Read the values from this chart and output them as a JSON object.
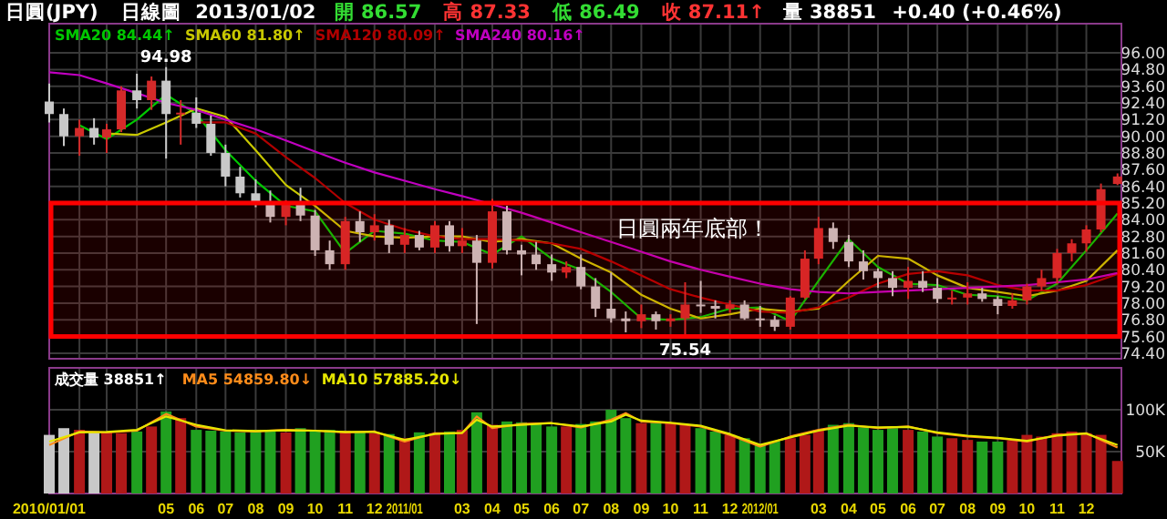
{
  "chart_data": [
    {
      "type": "candlestick",
      "title": "日圓(JPY)",
      "subtitle": "日線圖",
      "annotations": [
        "2013/01/02",
        "開 86.57",
        "高 87.33",
        "低 86.49",
        "收 87.11↑",
        "量 38851",
        "+0.40 (+0.46%)",
        {
          "text": "94.98",
          "x": "2010-05-01",
          "y": 94.98
        },
        {
          "text": "75.54",
          "x": "2011-10-16",
          "y": 75.54
        }
      ],
      "x": [
        "2010-01-01",
        "2010-01-16",
        "2010-02-01",
        "2010-02-16",
        "2010-03-01",
        "2010-03-16",
        "2010-04-01",
        "2010-04-16",
        "2010-05-01",
        "2010-05-16",
        "2010-06-01",
        "2010-06-16",
        "2010-07-01",
        "2010-07-16",
        "2010-08-01",
        "2010-08-16",
        "2010-09-01",
        "2010-09-16",
        "2010-10-01",
        "2010-10-16",
        "2010-11-01",
        "2010-11-16",
        "2010-12-01",
        "2010-12-16",
        "2011-01-01",
        "2011-01-16",
        "2011-02-01",
        "2011-02-16",
        "2011-03-01",
        "2011-03-16",
        "2011-04-01",
        "2011-04-16",
        "2011-05-01",
        "2011-05-16",
        "2011-06-01",
        "2011-06-16",
        "2011-07-01",
        "2011-07-16",
        "2011-08-01",
        "2011-08-16",
        "2011-09-01",
        "2011-09-16",
        "2011-10-01",
        "2011-10-16",
        "2011-11-01",
        "2011-11-16",
        "2011-12-01",
        "2011-12-16",
        "2012-01-01",
        "2012-01-16",
        "2012-02-01",
        "2012-02-16",
        "2012-03-01",
        "2012-03-16",
        "2012-04-01",
        "2012-04-16",
        "2012-05-01",
        "2012-05-16",
        "2012-06-01",
        "2012-06-16",
        "2012-07-01",
        "2012-07-16",
        "2012-08-01",
        "2012-08-16",
        "2012-09-01",
        "2012-09-16",
        "2012-10-01",
        "2012-10-16",
        "2012-11-01",
        "2012-11-16",
        "2012-12-01",
        "2012-12-16",
        "2013-01-02"
      ],
      "ohlc": [
        [
          92.5,
          93.8,
          91.0,
          91.6
        ],
        [
          91.6,
          92.0,
          89.3,
          90.0
        ],
        [
          90.0,
          91.2,
          88.6,
          90.6
        ],
        [
          90.6,
          91.3,
          89.4,
          89.9
        ],
        [
          89.9,
          90.9,
          88.8,
          90.5
        ],
        [
          90.5,
          93.6,
          90.3,
          93.3
        ],
        [
          93.3,
          94.5,
          92.0,
          92.6
        ],
        [
          92.6,
          94.3,
          91.9,
          94.0
        ],
        [
          94.0,
          94.98,
          88.4,
          91.6
        ],
        [
          91.6,
          92.6,
          89.4,
          91.7
        ],
        [
          91.7,
          92.8,
          90.6,
          90.9
        ],
        [
          90.9,
          91.5,
          88.6,
          88.8
        ],
        [
          88.8,
          89.4,
          86.4,
          87.1
        ],
        [
          87.1,
          87.8,
          85.6,
          85.9
        ],
        [
          85.9,
          86.9,
          84.9,
          85.2
        ],
        [
          85.2,
          86.1,
          83.8,
          84.2
        ],
        [
          84.2,
          85.4,
          83.6,
          85.2
        ],
        [
          85.2,
          86.3,
          83.9,
          84.3
        ],
        [
          84.3,
          84.7,
          81.4,
          81.8
        ],
        [
          81.8,
          82.5,
          80.4,
          80.8
        ],
        [
          80.8,
          84.2,
          80.4,
          83.9
        ],
        [
          83.9,
          84.6,
          82.4,
          83.1
        ],
        [
          83.1,
          84.4,
          82.5,
          83.6
        ],
        [
          83.6,
          84.0,
          81.6,
          82.2
        ],
        [
          82.2,
          83.4,
          81.6,
          82.9
        ],
        [
          82.9,
          83.2,
          81.8,
          82.0
        ],
        [
          82.0,
          83.9,
          81.6,
          83.6
        ],
        [
          83.6,
          83.9,
          81.7,
          82.1
        ],
        [
          82.1,
          83.4,
          81.6,
          82.5
        ],
        [
          82.5,
          82.9,
          76.5,
          80.9
        ],
        [
          80.9,
          85.5,
          80.5,
          84.6
        ],
        [
          84.6,
          85.0,
          81.5,
          81.8
        ],
        [
          81.8,
          82.2,
          80.0,
          81.5
        ],
        [
          81.5,
          82.4,
          80.4,
          80.8
        ],
        [
          80.8,
          81.5,
          79.6,
          80.2
        ],
        [
          80.2,
          81.0,
          79.8,
          80.6
        ],
        [
          80.6,
          81.5,
          79.0,
          79.2
        ],
        [
          79.2,
          79.8,
          77.0,
          77.6
        ],
        [
          77.6,
          80.2,
          76.6,
          76.9
        ],
        [
          76.9,
          77.4,
          75.9,
          76.7
        ],
        [
          76.7,
          77.9,
          76.2,
          77.2
        ],
        [
          77.2,
          77.4,
          76.1,
          76.7
        ],
        [
          76.7,
          77.2,
          76.3,
          76.9
        ],
        [
          76.9,
          79.5,
          75.54,
          77.9
        ],
        [
          77.9,
          79.6,
          77.3,
          77.8
        ],
        [
          77.8,
          78.2,
          76.9,
          77.6
        ],
        [
          77.6,
          78.2,
          77.3,
          77.9
        ],
        [
          77.9,
          78.2,
          76.8,
          76.9
        ],
        [
          76.9,
          77.8,
          76.3,
          76.8
        ],
        [
          76.8,
          77.1,
          76.0,
          76.3
        ],
        [
          76.3,
          78.5,
          76.1,
          78.4
        ],
        [
          78.4,
          81.8,
          78.3,
          81.2
        ],
        [
          81.2,
          84.2,
          80.8,
          83.4
        ],
        [
          83.4,
          83.8,
          81.9,
          82.4
        ],
        [
          82.4,
          82.9,
          80.6,
          81.0
        ],
        [
          81.0,
          81.8,
          79.7,
          80.3
        ],
        [
          80.3,
          80.5,
          79.1,
          79.8
        ],
        [
          79.8,
          80.3,
          78.5,
          79.1
        ],
        [
          79.1,
          80.6,
          78.3,
          79.6
        ],
        [
          79.6,
          80.3,
          78.8,
          79.1
        ],
        [
          79.1,
          79.8,
          78.0,
          78.3
        ],
        [
          78.3,
          78.9,
          77.9,
          78.4
        ],
        [
          78.4,
          79.5,
          77.9,
          78.7
        ],
        [
          78.7,
          79.1,
          78.1,
          78.3
        ],
        [
          78.3,
          78.5,
          77.2,
          77.8
        ],
        [
          77.8,
          78.7,
          77.6,
          78.2
        ],
        [
          78.2,
          79.4,
          77.9,
          79.2
        ],
        [
          79.2,
          80.4,
          78.9,
          79.8
        ],
        [
          79.8,
          81.9,
          79.4,
          81.6
        ],
        [
          81.6,
          82.6,
          81.0,
          82.3
        ],
        [
          82.3,
          83.6,
          81.7,
          83.3
        ],
        [
          83.3,
          86.6,
          83.1,
          86.2
        ],
        [
          86.57,
          87.33,
          86.49,
          87.11
        ]
      ],
      "colors": [
        "#c8c8c8",
        "#c8c8c8",
        "#d42a2a",
        "#c8c8c8",
        "#d42a2a",
        "#d42a2a",
        "#c8c8c8",
        "#d42a2a",
        "#c8c8c8",
        "#d42a2a",
        "#c8c8c8",
        "#c8c8c8",
        "#c8c8c8",
        "#c8c8c8",
        "#c8c8c8",
        "#c8c8c8",
        "#d42a2a",
        "#c8c8c8",
        "#c8c8c8",
        "#c8c8c8",
        "#d42a2a",
        "#c8c8c8",
        "#d42a2a",
        "#c8c8c8",
        "#d42a2a",
        "#c8c8c8",
        "#d42a2a",
        "#c8c8c8",
        "#d42a2a",
        "#c8c8c8",
        "#d42a2a",
        "#c8c8c8",
        "#c8c8c8",
        "#c8c8c8",
        "#c8c8c8",
        "#d42a2a",
        "#c8c8c8",
        "#c8c8c8",
        "#c8c8c8",
        "#c8c8c8",
        "#d42a2a",
        "#c8c8c8",
        "#d42a2a",
        "#d42a2a",
        "#c8c8c8",
        "#c8c8c8",
        "#d42a2a",
        "#c8c8c8",
        "#c8c8c8",
        "#c8c8c8",
        "#d42a2a",
        "#d42a2a",
        "#d42a2a",
        "#c8c8c8",
        "#c8c8c8",
        "#c8c8c8",
        "#c8c8c8",
        "#c8c8c8",
        "#d42a2a",
        "#c8c8c8",
        "#c8c8c8",
        "#d42a2a",
        "#d42a2a",
        "#c8c8c8",
        "#c8c8c8",
        "#d42a2a",
        "#d42a2a",
        "#d42a2a",
        "#d42a2a",
        "#d42a2a",
        "#d42a2a",
        "#d42a2a",
        "#d42a2a"
      ],
      "series": [
        {
          "type": "line",
          "name": "SMA20 84.44↑",
          "color": "#00c800",
          "x": [
            "2010-02-01",
            "2010-03-01",
            "2010-04-01",
            "2010-05-01",
            "2010-06-01",
            "2010-07-01",
            "2010-08-01",
            "2010-09-01",
            "2010-10-01",
            "2010-11-01",
            "2010-12-01",
            "2011-01-01",
            "2011-02-01",
            "2011-03-01",
            "2011-04-01",
            "2011-05-01",
            "2011-06-01",
            "2011-07-01",
            "2011-08-01",
            "2011-09-01",
            "2011-10-01",
            "2011-11-01",
            "2011-12-01",
            "2012-01-01",
            "2012-02-01",
            "2012-03-01",
            "2012-04-01",
            "2012-05-01",
            "2012-06-01",
            "2012-07-01",
            "2012-08-01",
            "2012-09-01",
            "2012-10-01",
            "2012-11-01",
            "2012-12-01",
            "2013-01-02"
          ],
          "values": [
            90.8,
            89.8,
            91.2,
            93.0,
            91.6,
            89.0,
            86.8,
            85.0,
            84.6,
            81.6,
            83.2,
            83.0,
            82.5,
            82.4,
            81.5,
            82.8,
            81.2,
            80.4,
            78.8,
            76.9,
            76.8,
            77.0,
            77.6,
            77.7,
            76.7,
            79.6,
            82.6,
            80.6,
            79.4,
            79.3,
            78.6,
            78.5,
            78.2,
            79.4,
            81.8,
            84.44
          ]
        },
        {
          "type": "line",
          "name": "SMA60 81.80↑",
          "color": "#c8c800",
          "x": [
            "2010-03-01",
            "2010-04-01",
            "2010-05-01",
            "2010-06-01",
            "2010-07-01",
            "2010-08-01",
            "2010-09-01",
            "2010-10-01",
            "2010-11-01",
            "2010-12-01",
            "2011-01-01",
            "2011-02-01",
            "2011-03-01",
            "2011-04-01",
            "2011-05-01",
            "2011-06-01",
            "2011-07-01",
            "2011-08-01",
            "2011-09-01",
            "2011-10-01",
            "2011-11-01",
            "2011-12-01",
            "2012-01-01",
            "2012-02-01",
            "2012-03-01",
            "2012-04-01",
            "2012-05-01",
            "2012-06-01",
            "2012-07-01",
            "2012-08-01",
            "2012-09-01",
            "2012-10-01",
            "2012-11-01",
            "2012-12-01",
            "2013-01-02"
          ],
          "values": [
            90.2,
            90.1,
            91.0,
            92.0,
            91.4,
            89.0,
            86.5,
            85.0,
            83.2,
            82.8,
            82.7,
            82.8,
            82.8,
            82.4,
            82.6,
            82.3,
            81.2,
            80.2,
            78.6,
            77.6,
            76.9,
            77.2,
            77.6,
            77.4,
            77.6,
            79.6,
            81.4,
            81.2,
            80.0,
            79.1,
            78.8,
            78.5,
            78.9,
            79.6,
            81.8
          ]
        },
        {
          "type": "line",
          "name": "SMA120 80.09↑",
          "color": "#b00000",
          "x": [
            "2010-06-01",
            "2010-07-01",
            "2010-08-01",
            "2010-09-01",
            "2010-10-01",
            "2010-11-01",
            "2010-12-01",
            "2011-01-01",
            "2011-02-01",
            "2011-03-01",
            "2011-04-01",
            "2011-05-01",
            "2011-06-01",
            "2011-07-01",
            "2011-08-01",
            "2011-09-01",
            "2011-10-01",
            "2011-11-01",
            "2011-12-01",
            "2012-01-01",
            "2012-02-01",
            "2012-03-01",
            "2012-04-01",
            "2012-05-01",
            "2012-06-01",
            "2012-07-01",
            "2012-08-01",
            "2012-09-01",
            "2012-10-01",
            "2012-11-01",
            "2012-12-01",
            "2013-01-02"
          ],
          "values": [
            91.0,
            91.0,
            90.2,
            88.5,
            87.0,
            85.2,
            84.0,
            83.3,
            82.8,
            82.6,
            82.6,
            82.5,
            82.3,
            81.9,
            81.0,
            80.0,
            79.0,
            78.4,
            77.9,
            77.4,
            77.3,
            77.7,
            78.4,
            79.4,
            80.1,
            80.3,
            80.0,
            79.3,
            78.9,
            78.9,
            79.3,
            80.09
          ]
        },
        {
          "type": "line",
          "name": "SMA240 80.16↑",
          "color": "#c000c0",
          "x": [
            "2010-01-01",
            "2010-02-01",
            "2010-03-01",
            "2010-04-01",
            "2010-05-01",
            "2010-06-01",
            "2010-07-01",
            "2010-08-01",
            "2010-09-01",
            "2010-10-01",
            "2010-11-01",
            "2010-12-01",
            "2011-01-01",
            "2011-02-01",
            "2011-03-01",
            "2011-04-01",
            "2011-05-01",
            "2011-06-01",
            "2011-07-01",
            "2011-08-01",
            "2011-09-01",
            "2011-10-01",
            "2011-11-01",
            "2011-12-01",
            "2012-01-01",
            "2012-02-01",
            "2012-03-01",
            "2012-04-01",
            "2012-05-01",
            "2012-06-01",
            "2012-07-01",
            "2012-08-01",
            "2012-09-01",
            "2012-10-01",
            "2012-11-01",
            "2012-12-01",
            "2013-01-02"
          ],
          "values": [
            94.6,
            94.4,
            93.8,
            93.1,
            92.4,
            91.9,
            91.2,
            90.5,
            89.7,
            88.9,
            88.1,
            87.4,
            86.8,
            86.2,
            85.7,
            85.1,
            84.5,
            83.8,
            83.1,
            82.4,
            81.7,
            81.0,
            80.4,
            79.9,
            79.4,
            79.0,
            78.8,
            78.7,
            78.8,
            78.9,
            79.0,
            79.1,
            79.2,
            79.3,
            79.5,
            79.7,
            80.16
          ]
        }
      ],
      "xlim": [
        "2010-01-01",
        "2013-01-06"
      ],
      "xticks": [
        {
          "value": "2010-01-01",
          "label": null
        },
        {
          "value": "2010-02",
          "label": null
        },
        {
          "value": "2010-03",
          "label": null
        },
        {
          "value": "2010-04",
          "label": null
        },
        {
          "value": "2010-05",
          "label": null
        },
        {
          "value": "2010-06",
          "label": null
        },
        {
          "value": "2010-07",
          "label": null
        },
        {
          "value": "2010-08",
          "label": null
        },
        {
          "value": "2010-09",
          "label": null
        },
        {
          "value": "2010-10",
          "label": null
        },
        {
          "value": "2010-11",
          "label": null
        },
        {
          "value": "2010-12",
          "label": null
        },
        {
          "value": "2011-01",
          "label": null
        },
        {
          "value": "2011-02",
          "label": null
        },
        {
          "value": "2011-03",
          "label": null
        },
        {
          "value": "2011-04",
          "label": null
        },
        {
          "value": "2011-05",
          "label": null
        },
        {
          "value": "2011-06",
          "label": null
        },
        {
          "value": "2011-07",
          "label": null
        },
        {
          "value": "2011-08",
          "label": null
        },
        {
          "value": "2011-09",
          "label": null
        },
        {
          "value": "2011-10",
          "label": null
        },
        {
          "value": "2011-11",
          "label": null
        },
        {
          "value": "2011-12",
          "label": null
        },
        {
          "value": "2012-01",
          "label": null
        },
        {
          "value": "2012-02",
          "label": null
        },
        {
          "value": "2012-03",
          "label": null
        },
        {
          "value": "2012-04",
          "label": null
        },
        {
          "value": "2012-05",
          "label": null
        },
        {
          "value": "2012-06",
          "label": null
        },
        {
          "value": "2012-07",
          "label": null
        },
        {
          "value": "2012-08",
          "label": null
        },
        {
          "value": "2012-09",
          "label": null
        },
        {
          "value": "2012-10",
          "label": null
        },
        {
          "value": "2012-11",
          "label": null
        },
        {
          "value": "2012-12",
          "label": null
        }
      ],
      "ylim": [
        74.0,
        98.1
      ],
      "yticks": [
        {
          "value": 74.4,
          "label": "74.40"
        },
        {
          "value": 75.6,
          "label": "75.60"
        },
        {
          "value": 76.8,
          "label": "76.80"
        },
        {
          "value": 78,
          "label": "78.00"
        },
        {
          "value": 79.2,
          "label": "79.20"
        },
        {
          "value": 80.4,
          "label": "80.40"
        },
        {
          "value": 81.6,
          "label": "81.60"
        },
        {
          "value": 82.8,
          "label": "82.80"
        },
        {
          "value": 84,
          "label": "84.00"
        },
        {
          "value": 85.2,
          "label": "85.20"
        },
        {
          "value": 86.4,
          "label": "86.40"
        },
        {
          "value": 87.6,
          "label": "87.60"
        },
        {
          "value": 88.8,
          "label": "88.80"
        },
        {
          "value": 90,
          "label": "90.00"
        },
        {
          "value": 91.2,
          "label": "91.20"
        },
        {
          "value": 92.4,
          "label": "92.40"
        },
        {
          "value": 93.6,
          "label": "93.60"
        },
        {
          "value": 94.8,
          "label": "94.80"
        },
        {
          "value": 96,
          "label": "96.00"
        }
      ],
      "bands": [
        {
          "axis": "y",
          "from": 75.6,
          "to": 85.2,
          "label": "日圓兩年底部！",
          "color": "#ff0000"
        }
      ],
      "tick_labels": "y",
      "grid": true,
      "legend": "top left"
    },
    {
      "type": "bar",
      "annotations": [
        "成交量 38851↑"
      ],
      "x": [
        "2010-01-01",
        "2010-01-16",
        "2010-02-01",
        "2010-02-16",
        "2010-03-01",
        "2010-03-16",
        "2010-04-01",
        "2010-04-16",
        "2010-05-01",
        "2010-05-16",
        "2010-06-01",
        "2010-06-16",
        "2010-07-01",
        "2010-07-16",
        "2010-08-01",
        "2010-08-16",
        "2010-09-01",
        "2010-09-16",
        "2010-10-01",
        "2010-10-16",
        "2010-11-01",
        "2010-11-16",
        "2010-12-01",
        "2010-12-16",
        "2011-01-01",
        "2011-01-16",
        "2011-02-01",
        "2011-02-16",
        "2011-03-01",
        "2011-03-16",
        "2011-04-01",
        "2011-04-16",
        "2011-05-01",
        "2011-05-16",
        "2011-06-01",
        "2011-06-16",
        "2011-07-01",
        "2011-07-16",
        "2011-08-01",
        "2011-08-16",
        "2011-09-01",
        "2011-09-16",
        "2011-10-01",
        "2011-10-16",
        "2011-11-01",
        "2011-11-16",
        "2011-12-01",
        "2011-12-16",
        "2012-01-01",
        "2012-01-16",
        "2012-02-01",
        "2012-02-16",
        "2012-03-01",
        "2012-03-16",
        "2012-04-01",
        "2012-04-16",
        "2012-05-01",
        "2012-05-16",
        "2012-06-01",
        "2012-06-16",
        "2012-07-01",
        "2012-07-16",
        "2012-08-01",
        "2012-08-16",
        "2012-09-01",
        "2012-09-16",
        "2012-10-01",
        "2012-10-16",
        "2012-11-01",
        "2012-11-16",
        "2012-12-01",
        "2012-12-16",
        "2013-01-02"
      ],
      "values": [
        70000,
        78000,
        76000,
        74000,
        73000,
        72000,
        74000,
        80000,
        98000,
        90000,
        76000,
        75000,
        74000,
        73000,
        76000,
        75000,
        73000,
        78000,
        74000,
        76000,
        75000,
        74000,
        72000,
        71000,
        66000,
        73000,
        72000,
        74000,
        76000,
        97000,
        82000,
        86000,
        85000,
        83000,
        80000,
        80000,
        83000,
        86000,
        100000,
        90000,
        84000,
        86000,
        85000,
        82000,
        78000,
        74000,
        70000,
        66000,
        58000,
        62000,
        66000,
        70000,
        76000,
        82000,
        84000,
        79000,
        76000,
        78000,
        76000,
        74000,
        68000,
        66000,
        64000,
        62000,
        62000,
        63000,
        70000,
        68000,
        72000,
        74000,
        72000,
        70000,
        38851
      ],
      "colors": [
        "#c8c8c8",
        "#c8c8c8",
        "#b01818",
        "#c8c8c8",
        "#b01818",
        "#b01818",
        "#20a020",
        "#b01818",
        "#20a020",
        "#b01818",
        "#20a020",
        "#20a020",
        "#20a020",
        "#20a020",
        "#20a020",
        "#20a020",
        "#b01818",
        "#20a020",
        "#20a020",
        "#20a020",
        "#b01818",
        "#20a020",
        "#b01818",
        "#20a020",
        "#b01818",
        "#20a020",
        "#b01818",
        "#20a020",
        "#b01818",
        "#20a020",
        "#b01818",
        "#20a020",
        "#20a020",
        "#20a020",
        "#20a020",
        "#b01818",
        "#20a020",
        "#20a020",
        "#20a020",
        "#20a020",
        "#b01818",
        "#20a020",
        "#b01818",
        "#b01818",
        "#20a020",
        "#20a020",
        "#b01818",
        "#20a020",
        "#20a020",
        "#20a020",
        "#b01818",
        "#b01818",
        "#b01818",
        "#20a020",
        "#20a020",
        "#20a020",
        "#20a020",
        "#20a020",
        "#b01818",
        "#20a020",
        "#20a020",
        "#b01818",
        "#b01818",
        "#20a020",
        "#20a020",
        "#b01818",
        "#b01818",
        "#b01818",
        "#b01818",
        "#b01818",
        "#b01818",
        "#b01818",
        "#b01818"
      ],
      "series": [
        {
          "type": "line",
          "name": "MA5 54859.80↓",
          "color": "#ff8c1a",
          "x": [
            "2010-01-01",
            "2010-02-01",
            "2010-03-01",
            "2010-04-01",
            "2010-05-01",
            "2010-06-01",
            "2010-07-01",
            "2010-08-01",
            "2010-09-01",
            "2010-10-01",
            "2010-11-01",
            "2010-12-01",
            "2011-01-01",
            "2011-02-01",
            "2011-03-01",
            "2011-03-16",
            "2011-04-01",
            "2011-05-01",
            "2011-06-01",
            "2011-07-01",
            "2011-08-01",
            "2011-08-16",
            "2011-09-01",
            "2011-10-01",
            "2011-11-01",
            "2011-12-01",
            "2012-01-01",
            "2012-02-01",
            "2012-03-01",
            "2012-04-01",
            "2012-05-01",
            "2012-06-01",
            "2012-07-01",
            "2012-08-01",
            "2012-09-01",
            "2012-10-01",
            "2012-11-01",
            "2012-12-01",
            "2013-01-02"
          ],
          "values": [
            58000,
            74000,
            73000,
            75000,
            95000,
            80000,
            75000,
            74000,
            76000,
            75000,
            73000,
            74000,
            62000,
            72000,
            72000,
            92000,
            78000,
            83000,
            84000,
            79000,
            88000,
            96000,
            86000,
            84000,
            80000,
            70000,
            56000,
            68000,
            76000,
            82000,
            78000,
            80000,
            72000,
            68000,
            66000,
            62000,
            70000,
            72000,
            54859.8
          ]
        },
        {
          "type": "line",
          "name": "MA10 57885.20↓",
          "color": "#e6e600",
          "x": [
            "2010-01-01",
            "2010-02-01",
            "2010-03-01",
            "2010-04-01",
            "2010-05-01",
            "2010-06-01",
            "2010-07-01",
            "2010-08-01",
            "2010-09-01",
            "2010-10-01",
            "2010-11-01",
            "2010-12-01",
            "2011-01-01",
            "2011-02-01",
            "2011-03-01",
            "2011-03-16",
            "2011-04-01",
            "2011-05-01",
            "2011-06-01",
            "2011-07-01",
            "2011-08-01",
            "2011-08-16",
            "2011-09-01",
            "2011-10-01",
            "2011-11-01",
            "2011-12-01",
            "2012-01-01",
            "2012-02-01",
            "2012-03-01",
            "2012-04-01",
            "2012-05-01",
            "2012-06-01",
            "2012-07-01",
            "2012-08-01",
            "2012-09-01",
            "2012-10-01",
            "2012-11-01",
            "2012-12-01",
            "2013-01-02"
          ],
          "values": [
            62000,
            73000,
            73500,
            76000,
            92000,
            82000,
            75500,
            74500,
            75500,
            75000,
            73500,
            73500,
            64000,
            71000,
            72500,
            88000,
            80000,
            82000,
            84000,
            80000,
            86000,
            94000,
            87000,
            84500,
            81000,
            71000,
            58000,
            67000,
            75000,
            81000,
            79000,
            79500,
            73000,
            69000,
            66500,
            63000,
            69000,
            71500,
            57885.2
          ]
        }
      ],
      "xlim": [
        "2010-01-01",
        "2013-01-06"
      ],
      "xticks": [
        {
          "value": "2010-01-01",
          "label": "2010/01/01"
        },
        {
          "value": "2010-02",
          "label": null
        },
        {
          "value": "2010-03",
          "label": null
        },
        {
          "value": "2010-04",
          "label": null
        },
        {
          "value": "2010-05",
          "label": "05"
        },
        {
          "value": "2010-06",
          "label": "06"
        },
        {
          "value": "2010-07",
          "label": "07"
        },
        {
          "value": "2010-08",
          "label": "08"
        },
        {
          "value": "2010-09",
          "label": "09"
        },
        {
          "value": "2010-10",
          "label": "10"
        },
        {
          "value": "2010-11",
          "label": "11"
        },
        {
          "value": "2010-12",
          "label": "12"
        },
        {
          "value": "2011-01",
          "label": "2011/01"
        },
        {
          "value": "2011-02",
          "label": null
        },
        {
          "value": "2011-03",
          "label": "03"
        },
        {
          "value": "2011-04",
          "label": "04"
        },
        {
          "value": "2011-05",
          "label": "05"
        },
        {
          "value": "2011-06",
          "label": "06"
        },
        {
          "value": "2011-07",
          "label": "07"
        },
        {
          "value": "2011-08",
          "label": "08"
        },
        {
          "value": "2011-09",
          "label": "09"
        },
        {
          "value": "2011-10",
          "label": "10"
        },
        {
          "value": "2011-11",
          "label": "11"
        },
        {
          "value": "2011-12",
          "label": "12"
        },
        {
          "value": "2012-01",
          "label": "2012/01"
        },
        {
          "value": "2012-02",
          "label": null
        },
        {
          "value": "2012-03",
          "label": "03"
        },
        {
          "value": "2012-04",
          "label": "04"
        },
        {
          "value": "2012-05",
          "label": "05"
        },
        {
          "value": "2012-06",
          "label": "06"
        },
        {
          "value": "2012-07",
          "label": "07"
        },
        {
          "value": "2012-08",
          "label": "08"
        },
        {
          "value": "2012-09",
          "label": "09"
        },
        {
          "value": "2012-10",
          "label": "10"
        },
        {
          "value": "2012-11",
          "label": "11"
        },
        {
          "value": "2012-12",
          "label": "12"
        }
      ],
      "ylim": [
        0,
        150000
      ],
      "yticks": [
        {
          "value": 50000,
          "label": "50K"
        },
        {
          "value": 100000,
          "label": "100K"
        }
      ],
      "grid": true,
      "legend": "top left"
    }
  ]
}
